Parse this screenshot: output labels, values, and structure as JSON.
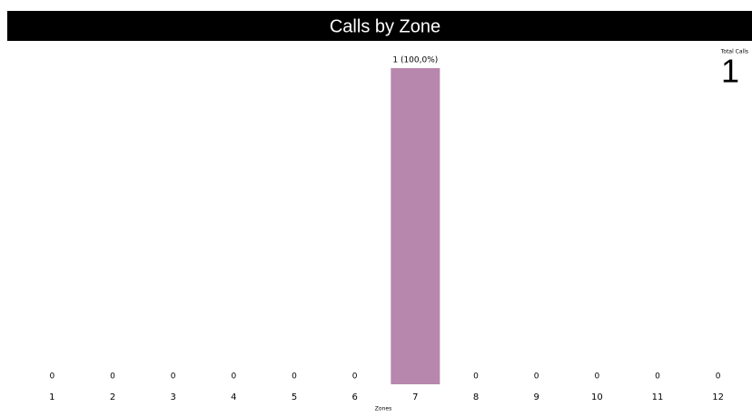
{
  "chart_data": {
    "type": "bar",
    "title": "Calls by Zone",
    "xlabel": "Zones",
    "categories": [
      "1",
      "2",
      "3",
      "4",
      "5",
      "6",
      "7",
      "8",
      "9",
      "10",
      "11",
      "12"
    ],
    "values": [
      0,
      0,
      0,
      0,
      0,
      0,
      1,
      0,
      0,
      0,
      0,
      0
    ],
    "value_labels": [
      "0",
      "0",
      "0",
      "0",
      "0",
      "0",
      "1 (100,0%)",
      "0",
      "0",
      "0",
      "0",
      "0"
    ],
    "color": "#b887ad",
    "total": {
      "label": "Total Calls",
      "value": 1
    }
  }
}
